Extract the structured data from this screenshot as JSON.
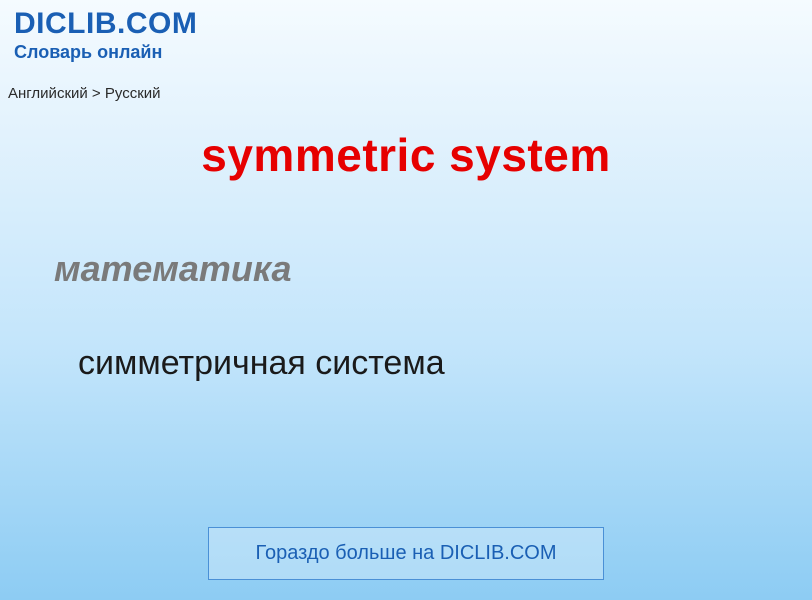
{
  "header": {
    "site_name": "DICLIB.COM",
    "subtitle": "Словарь онлайн",
    "site_name_color": "#1a5fb4",
    "subtitle_color": "#1a5fb4"
  },
  "breadcrumb": {
    "text": "Английский > Русский"
  },
  "entry": {
    "term": "symmetric system",
    "term_color": "#e60000",
    "category": "математика",
    "category_color": "#7a7a7a",
    "translation": "симметричная система",
    "translation_color": "#1a1a1a"
  },
  "cta": {
    "label": "Гораздо больше на DICLIB.COM",
    "border_color": "#4a90d6",
    "text_color": "#1a5fb4"
  },
  "background": {
    "gradient_top": "#f5fbff",
    "gradient_mid1": "#e4f3fd",
    "gradient_mid2": "#c3e5fb",
    "gradient_bottom": "#8dccf3"
  }
}
